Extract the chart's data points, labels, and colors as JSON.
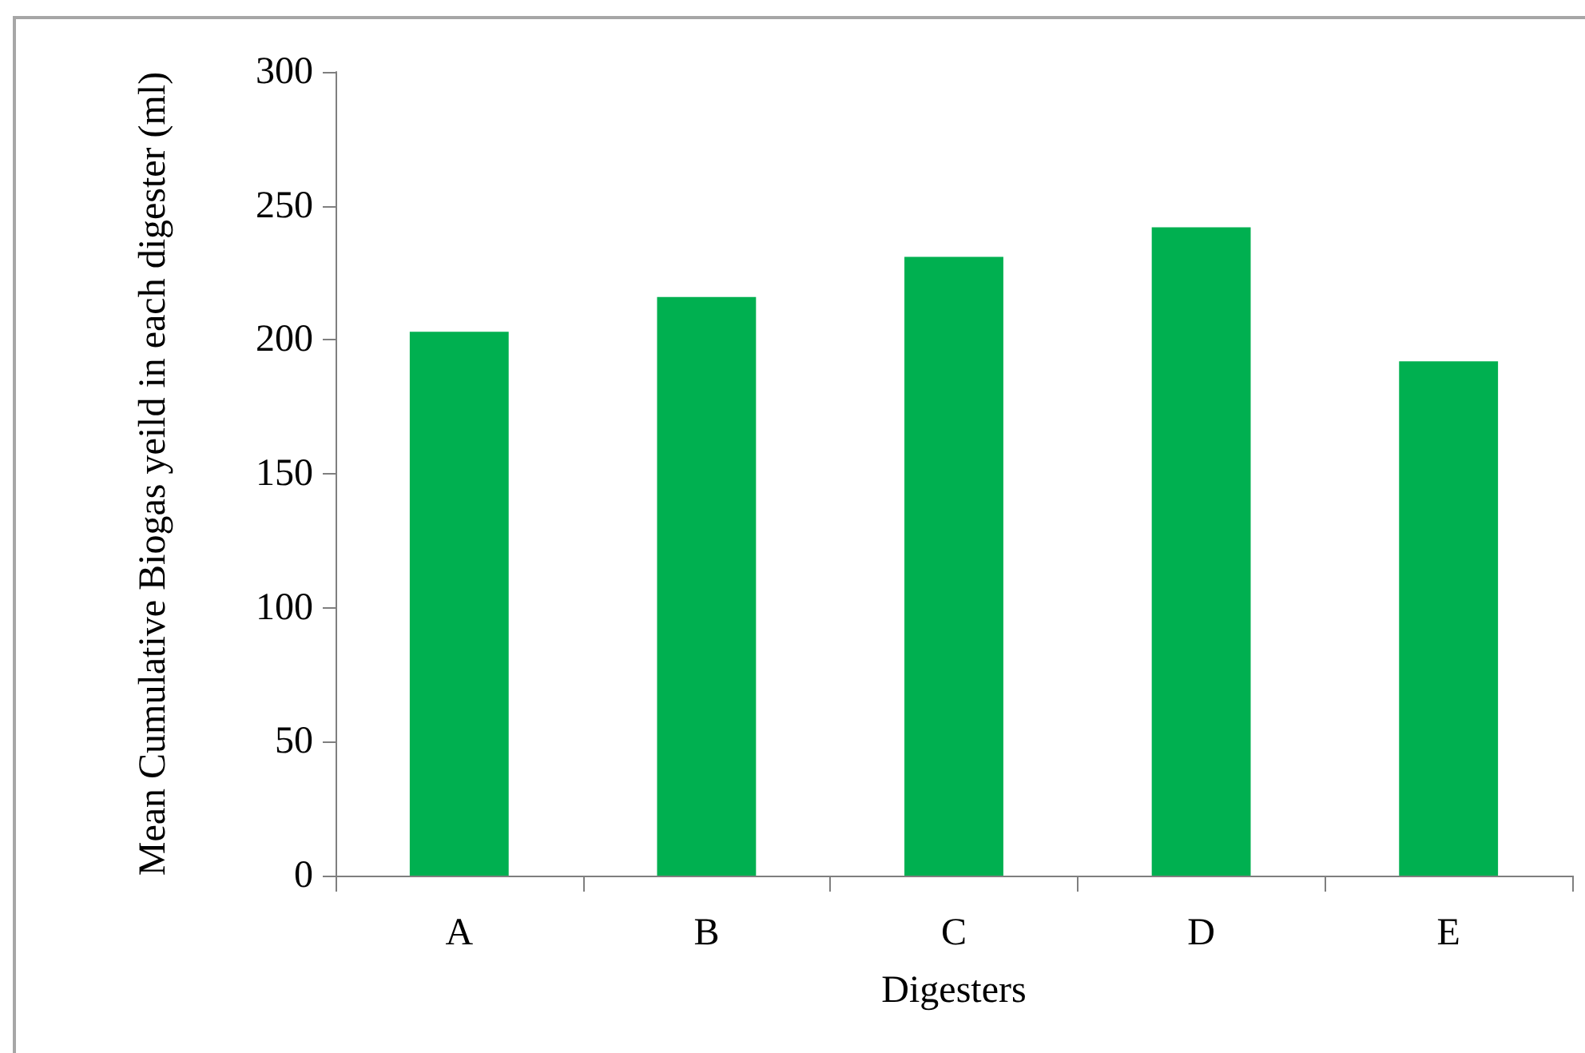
{
  "chart_data": {
    "type": "bar",
    "xlabel": "Digesters",
    "ylabel": "Mean Cumulative Biogas yeild in each digester (ml)",
    "categories": [
      "A",
      "B",
      "C",
      "D",
      "E"
    ],
    "values": [
      203,
      216,
      231,
      242,
      192
    ],
    "color": "#00b050",
    "ylim": [
      0,
      300
    ],
    "yticks": [
      0,
      50,
      100,
      150,
      200,
      250,
      300
    ],
    "grid": false
  }
}
